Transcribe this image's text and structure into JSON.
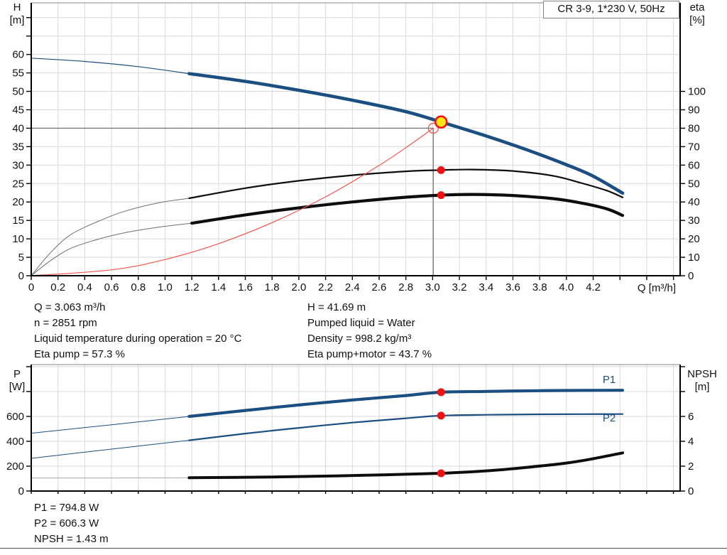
{
  "title_box": "CR 3-9, 1*230 V, 50Hz",
  "axis_titles": {
    "top_left_1": "H",
    "top_left_2": "[m]",
    "top_right_1": "eta",
    "top_right_2": "[%]",
    "top_x": "Q [m³/h]",
    "bottom_left_1": "P",
    "bottom_left_2": "[W]",
    "bottom_right_1": "NPSH",
    "bottom_right_2": "[m]"
  },
  "curve_labels": {
    "p1": "P1",
    "p2": "P2"
  },
  "info_left": [
    "Q = 3.063 m³/h",
    "n = 2851 rpm",
    "Liquid temperature during operation = 20 °C",
    "Eta pump = 57.3 %"
  ],
  "info_right": [
    "H = 41.69 m",
    "Pumped liquid = Water",
    "Density = 998.2 kg/m³",
    "Eta pump+motor = 43.7 %"
  ],
  "results": [
    "P1 = 794.8 W",
    "P2 = 606.3 W",
    "NPSH = 1.43 m"
  ],
  "colors": {
    "blue": "#1b4f82",
    "black": "#0d0d0d",
    "thin_gray": "#6e6e6e",
    "npsh_ext": "#a8a8a8",
    "red_line": "#f3564a",
    "red": "#ee1212",
    "yellow": "#ffe612",
    "grid": "#d9d9d9",
    "crosshair": "#7d7d7d",
    "border": "#8a8a8a"
  },
  "chart_data": [
    {
      "type": "line",
      "title": "QH and efficiency curves",
      "x": {
        "min": 0,
        "max": 4.85,
        "tick_step": 0.2,
        "label_max": 4.2,
        "label": "Q [m³/h]"
      },
      "y_left": {
        "name": "H [m]",
        "min": 0,
        "max": 74,
        "tick_step": 5,
        "label_max": 60
      },
      "y_right": {
        "name": "eta [%]",
        "min": 0,
        "max": 100,
        "tick_step": 10,
        "label_max": 100,
        "right_units_per_left_unit": 2
      },
      "series": [
        {
          "name": "qh-ext",
          "axis": "left",
          "color": "blue",
          "width": 1.2,
          "points": [
            [
              0,
              59
            ],
            [
              0.4,
              58.1
            ],
            [
              0.8,
              56.7
            ],
            [
              1.18,
              54.8
            ]
          ]
        },
        {
          "name": "qh",
          "axis": "left",
          "color": "blue",
          "width": 4.6,
          "points": [
            [
              1.18,
              54.8
            ],
            [
              1.6,
              52.7
            ],
            [
              2.0,
              50.3
            ],
            [
              2.4,
              47.6
            ],
            [
              2.8,
              44.5
            ],
            [
              3.063,
              41.69
            ],
            [
              3.4,
              37.9
            ],
            [
              3.7,
              34.2
            ],
            [
              4.0,
              30.1
            ],
            [
              4.2,
              27.0
            ],
            [
              4.42,
              22.4
            ]
          ]
        },
        {
          "name": "eta-pump-ext",
          "axis": "right",
          "color": "thin_gray",
          "width": 1,
          "points": [
            [
              0,
              0
            ],
            [
              0.15,
              13
            ],
            [
              0.3,
              22.5
            ],
            [
              0.5,
              29.5
            ],
            [
              0.7,
              35
            ],
            [
              0.95,
              39.5
            ],
            [
              1.18,
              42
            ]
          ]
        },
        {
          "name": "eta-pump",
          "axis": "right",
          "color": "black",
          "width": 2.2,
          "points": [
            [
              1.18,
              42
            ],
            [
              1.6,
              47.5
            ],
            [
              2.0,
              51.5
            ],
            [
              2.4,
              54.5
            ],
            [
              2.8,
              56.6
            ],
            [
              3.063,
              57.3
            ],
            [
              3.3,
              57.6
            ],
            [
              3.6,
              56.8
            ],
            [
              3.9,
              54.2
            ],
            [
              4.1,
              50.5
            ],
            [
              4.3,
              46.2
            ],
            [
              4.42,
              42.5
            ]
          ]
        },
        {
          "name": "eta-pump-motor-ext",
          "axis": "right",
          "color": "thin_gray",
          "width": 1,
          "points": [
            [
              0,
              0
            ],
            [
              0.15,
              8.5
            ],
            [
              0.3,
              15
            ],
            [
              0.5,
              19.8
            ],
            [
              0.7,
              23.3
            ],
            [
              0.95,
              26.3
            ],
            [
              1.2,
              28.5
            ]
          ]
        },
        {
          "name": "eta-pump-motor",
          "axis": "right",
          "color": "black",
          "width": 4.2,
          "points": [
            [
              1.2,
              28.5
            ],
            [
              1.6,
              33
            ],
            [
              2.0,
              36.8
            ],
            [
              2.4,
              40
            ],
            [
              2.8,
              42.6
            ],
            [
              3.063,
              43.7
            ],
            [
              3.3,
              44.1
            ],
            [
              3.6,
              43.5
            ],
            [
              3.9,
              41.8
            ],
            [
              4.1,
              39.6
            ],
            [
              4.3,
              36.3
            ],
            [
              4.42,
              32.7
            ]
          ]
        },
        {
          "name": "system-curve",
          "axis": "left",
          "color": "red_line",
          "width": 1.2,
          "points": [
            [
              0,
              0
            ],
            [
              0.6,
              1.6
            ],
            [
              1.0,
              4.4
            ],
            [
              1.4,
              8.7
            ],
            [
              1.8,
              14.4
            ],
            [
              2.2,
              21.4
            ],
            [
              2.6,
              29.9
            ],
            [
              2.85,
              36
            ],
            [
              3.005,
              40
            ]
          ]
        }
      ],
      "crosshair": {
        "q": 3.005,
        "h": 40
      },
      "markers": [
        {
          "kind": "open-circle",
          "axis": "left",
          "q": 3.005,
          "value": 40
        },
        {
          "kind": "duty-point",
          "axis": "left",
          "q": 3.063,
          "value": 41.69
        },
        {
          "kind": "dot",
          "axis": "right",
          "q": 3.063,
          "value": 57.3
        },
        {
          "kind": "dot",
          "axis": "right",
          "q": 3.063,
          "value": 43.7
        }
      ]
    },
    {
      "type": "line",
      "title": "Power and NPSH curves",
      "x": {
        "min": 0,
        "max": 4.85,
        "tick_step": 0.2,
        "label_max": null,
        "label": ""
      },
      "y_left": {
        "name": "P [W]",
        "min": 0,
        "max": 1017,
        "tick_step": 200,
        "label_max": 600
      },
      "y_right": {
        "name": "NPSH [m]",
        "min": 0,
        "max": 10.17,
        "tick_step": 2,
        "label_max": 6,
        "right_units_per_left_unit": 0.01
      },
      "series": [
        {
          "name": "p1-ext",
          "axis": "left",
          "color": "blue",
          "width": 1,
          "points": [
            [
              0,
              465
            ],
            [
              0.6,
              533
            ],
            [
              1.18,
              600
            ]
          ]
        },
        {
          "name": "p1",
          "axis": "left",
          "color": "blue",
          "width": 4.2,
          "points": [
            [
              1.18,
              600
            ],
            [
              1.6,
              648
            ],
            [
              2.0,
              692
            ],
            [
              2.4,
              732
            ],
            [
              2.8,
              768
            ],
            [
              3.063,
              794.8
            ],
            [
              3.4,
              801
            ],
            [
              3.8,
              807
            ],
            [
              4.1,
              809
            ],
            [
              4.42,
              810
            ]
          ]
        },
        {
          "name": "p2-ext",
          "axis": "left",
          "color": "blue",
          "width": 1,
          "points": [
            [
              0,
              263
            ],
            [
              0.6,
              337
            ],
            [
              1.18,
              408
            ]
          ]
        },
        {
          "name": "p2",
          "axis": "left",
          "color": "blue",
          "width": 2.2,
          "points": [
            [
              1.18,
              408
            ],
            [
              1.6,
              462
            ],
            [
              2.0,
              508
            ],
            [
              2.4,
              550
            ],
            [
              2.8,
              585
            ],
            [
              3.063,
              606.3
            ],
            [
              3.4,
              613
            ],
            [
              3.8,
              617
            ],
            [
              4.1,
              618
            ],
            [
              4.42,
              619
            ]
          ]
        },
        {
          "name": "npsh-ext",
          "axis": "right",
          "color": "npsh_ext",
          "width": 1,
          "points": [
            [
              0,
              1.05
            ],
            [
              0.6,
              1.05
            ],
            [
              1.18,
              1.07
            ]
          ]
        },
        {
          "name": "npsh",
          "axis": "right",
          "color": "black",
          "width": 4,
          "points": [
            [
              1.18,
              1.07
            ],
            [
              1.8,
              1.13
            ],
            [
              2.3,
              1.22
            ],
            [
              2.7,
              1.32
            ],
            [
              3.063,
              1.43
            ],
            [
              3.4,
              1.62
            ],
            [
              3.7,
              1.9
            ],
            [
              4.0,
              2.25
            ],
            [
              4.2,
              2.6
            ],
            [
              4.42,
              3.07
            ]
          ]
        }
      ],
      "markers": [
        {
          "kind": "dot",
          "axis": "left",
          "q": 3.063,
          "value": 794.8
        },
        {
          "kind": "dot",
          "axis": "left",
          "q": 3.063,
          "value": 606.3
        },
        {
          "kind": "dot",
          "axis": "right",
          "q": 3.063,
          "value": 1.43
        }
      ]
    }
  ]
}
